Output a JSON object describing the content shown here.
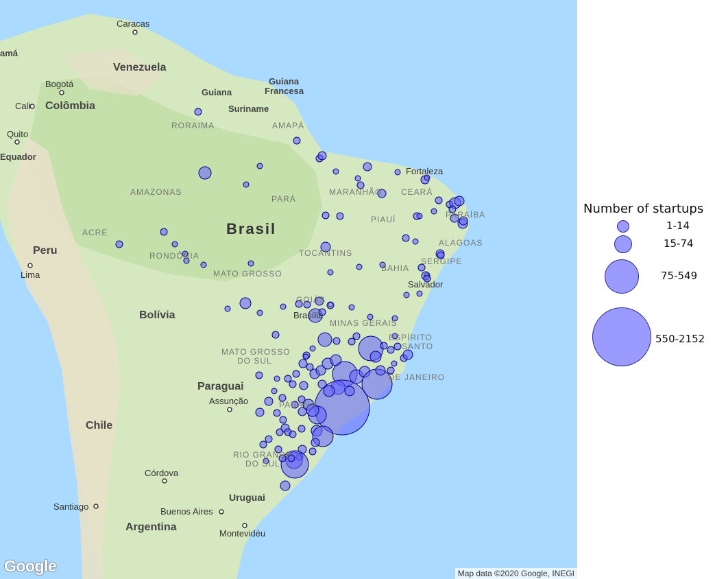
{
  "map": {
    "labels": {
      "caracas": "Caracas",
      "venezuela": "Venezuela",
      "bogota": "Bogotá",
      "colombia": "Colômbia",
      "cali": "Cali",
      "quito": "Quito",
      "equador": "Equador",
      "panama": "amá",
      "guiana": "Guiana",
      "suriname": "Suriname",
      "guiana_francesa_1": "Guiana",
      "guiana_francesa_2": "Francesa",
      "roraima": "RORAIMA",
      "amapa": "AMAPÁ",
      "amazonas": "AMAZONAS",
      "para": "PARÁ",
      "maranhao": "MARANHÃO",
      "ceara": "CEARÁ",
      "fortaleza": "Fortaleza",
      "paraiba": "PARAÍBA",
      "piaui": "PIAUÍ",
      "alagoas": "ALAGOAS",
      "sergipe": "SERGIPE",
      "bahia": "BAHIA",
      "salvador": "Salvador",
      "tocantins": "TOCANTINS",
      "brasil": "Brasil",
      "acre": "ACRE",
      "rondonia": "RONDÔNIA",
      "mato_grosso": "MATO GROSSO",
      "goias": "GOIÁS",
      "brasilia": "Brasília",
      "minas_gerais": "MINAS GERAIS",
      "espirito_santo_1": "ESPÍRITO",
      "espirito_santo_2": "SANTO",
      "rio_de_janeiro": "DE JANEIRO",
      "peru": "Peru",
      "lima": "Lima",
      "bolivia": "Bolívia",
      "ms_1": "MATO GROSSO",
      "ms_2": "DO SUL",
      "paraguai": "Paraguai",
      "assuncao": "Assunção",
      "parana": "PARANÁ",
      "chile": "Chile",
      "rs_1": "RIO GRANDE",
      "rs_2": "DO SUL",
      "cordova": "Córdova",
      "uruguai": "Uruguai",
      "santiago": "Santiago",
      "buenos_aires": "Buenos Aires",
      "argentina": "Argentina",
      "montevideu": "Montevidéu"
    },
    "google_logo": "Google",
    "attribution": "Map data ©2020 Google, INEGI",
    "colors": {
      "ocean": "#aadaff",
      "land": "#d8e9c3",
      "forest": "#bcdca4",
      "mountain": "#e6e0c8",
      "marker_fill": "#6060ff",
      "marker_stroke": "#00008b"
    }
  },
  "legend": {
    "title": "Number of startups",
    "items": [
      {
        "label": "1-14"
      },
      {
        "label": "15-74"
      },
      {
        "label": "75-549"
      },
      {
        "label": "550-2152"
      }
    ]
  }
}
